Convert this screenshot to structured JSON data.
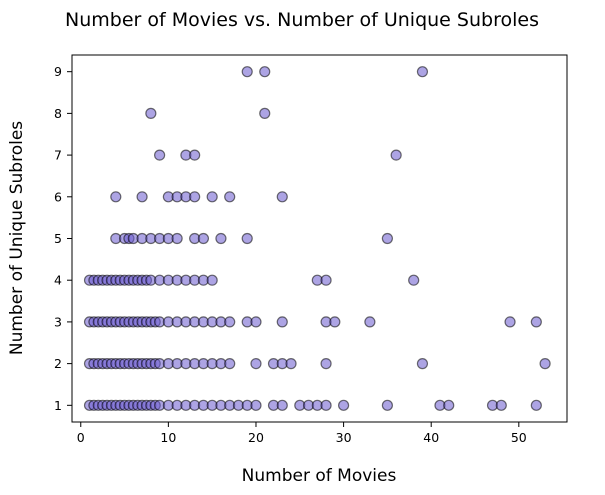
{
  "chart_data": {
    "type": "scatter",
    "title": "Number of Movies vs. Number of Unique Subroles",
    "xlabel": "Number of Movies",
    "ylabel": "Number of Unique Subroles",
    "xlim": [
      -1,
      55.5
    ],
    "ylim": [
      0.6,
      9.4
    ],
    "xticks": [
      0,
      10,
      20,
      30,
      40,
      50
    ],
    "yticks": [
      1,
      2,
      3,
      4,
      5,
      6,
      7,
      8,
      9
    ],
    "grid": false,
    "legend": "none",
    "marker": {
      "fill": "#6a5acd",
      "edge": "#000000",
      "alpha": 0.55
    },
    "series": [
      {
        "x": [
          1,
          1.5,
          2,
          2.5,
          3,
          3.5,
          4,
          4.5,
          5,
          5.5,
          6,
          6.5,
          7,
          7.5,
          8,
          8.5,
          9,
          10,
          11,
          12,
          13,
          14,
          15,
          16,
          17,
          18,
          19,
          20,
          22,
          23,
          25,
          26,
          27,
          28,
          30,
          35,
          41,
          42,
          47,
          48,
          52,
          1,
          1.5,
          2,
          2.5,
          3,
          3.5,
          4,
          4.5,
          5,
          5.5,
          6,
          6.5,
          7,
          7.5,
          8,
          8.5,
          9,
          10,
          11,
          12,
          13,
          14,
          15,
          16,
          17,
          20,
          22,
          23,
          24,
          28,
          39,
          53,
          1,
          1.5,
          2,
          2.5,
          3,
          3.5,
          4,
          4.5,
          5,
          5.5,
          6,
          6.5,
          7,
          7.5,
          8,
          8.5,
          9,
          10,
          11,
          12,
          13,
          14,
          15,
          16,
          17,
          19,
          20,
          23,
          28,
          29,
          33,
          49,
          52,
          1,
          1.5,
          2,
          2.5,
          3,
          3.5,
          4,
          4.5,
          5,
          5.5,
          6,
          6.5,
          7,
          7.5,
          8,
          9,
          10,
          11,
          12,
          13,
          14,
          15,
          27,
          28,
          38,
          4,
          5,
          5.5,
          6,
          7,
          8,
          9,
          10,
          11,
          13,
          14,
          16,
          19,
          35,
          4,
          7,
          10,
          11,
          12,
          13,
          15,
          17,
          23,
          9,
          12,
          13,
          36,
          8,
          21,
          19,
          21,
          39
        ],
        "y": [
          1,
          1,
          1,
          1,
          1,
          1,
          1,
          1,
          1,
          1,
          1,
          1,
          1,
          1,
          1,
          1,
          1,
          1,
          1,
          1,
          1,
          1,
          1,
          1,
          1,
          1,
          1,
          1,
          1,
          1,
          1,
          1,
          1,
          1,
          1,
          1,
          1,
          1,
          1,
          1,
          1,
          2,
          2,
          2,
          2,
          2,
          2,
          2,
          2,
          2,
          2,
          2,
          2,
          2,
          2,
          2,
          2,
          2,
          2,
          2,
          2,
          2,
          2,
          2,
          2,
          2,
          2,
          2,
          2,
          2,
          2,
          2,
          2,
          3,
          3,
          3,
          3,
          3,
          3,
          3,
          3,
          3,
          3,
          3,
          3,
          3,
          3,
          3,
          3,
          3,
          3,
          3,
          3,
          3,
          3,
          3,
          3,
          3,
          3,
          3,
          3,
          3,
          3,
          3,
          3,
          3,
          4,
          4,
          4,
          4,
          4,
          4,
          4,
          4,
          4,
          4,
          4,
          4,
          4,
          4,
          4,
          4,
          4,
          4,
          4,
          4,
          4,
          4,
          4,
          4,
          4,
          5,
          5,
          5,
          5,
          5,
          5,
          5,
          5,
          5,
          5,
          5,
          5,
          5,
          5,
          6,
          6,
          6,
          6,
          6,
          6,
          6,
          6,
          6,
          7,
          7,
          7,
          7,
          8,
          8,
          9,
          9,
          9
        ]
      }
    ]
  }
}
